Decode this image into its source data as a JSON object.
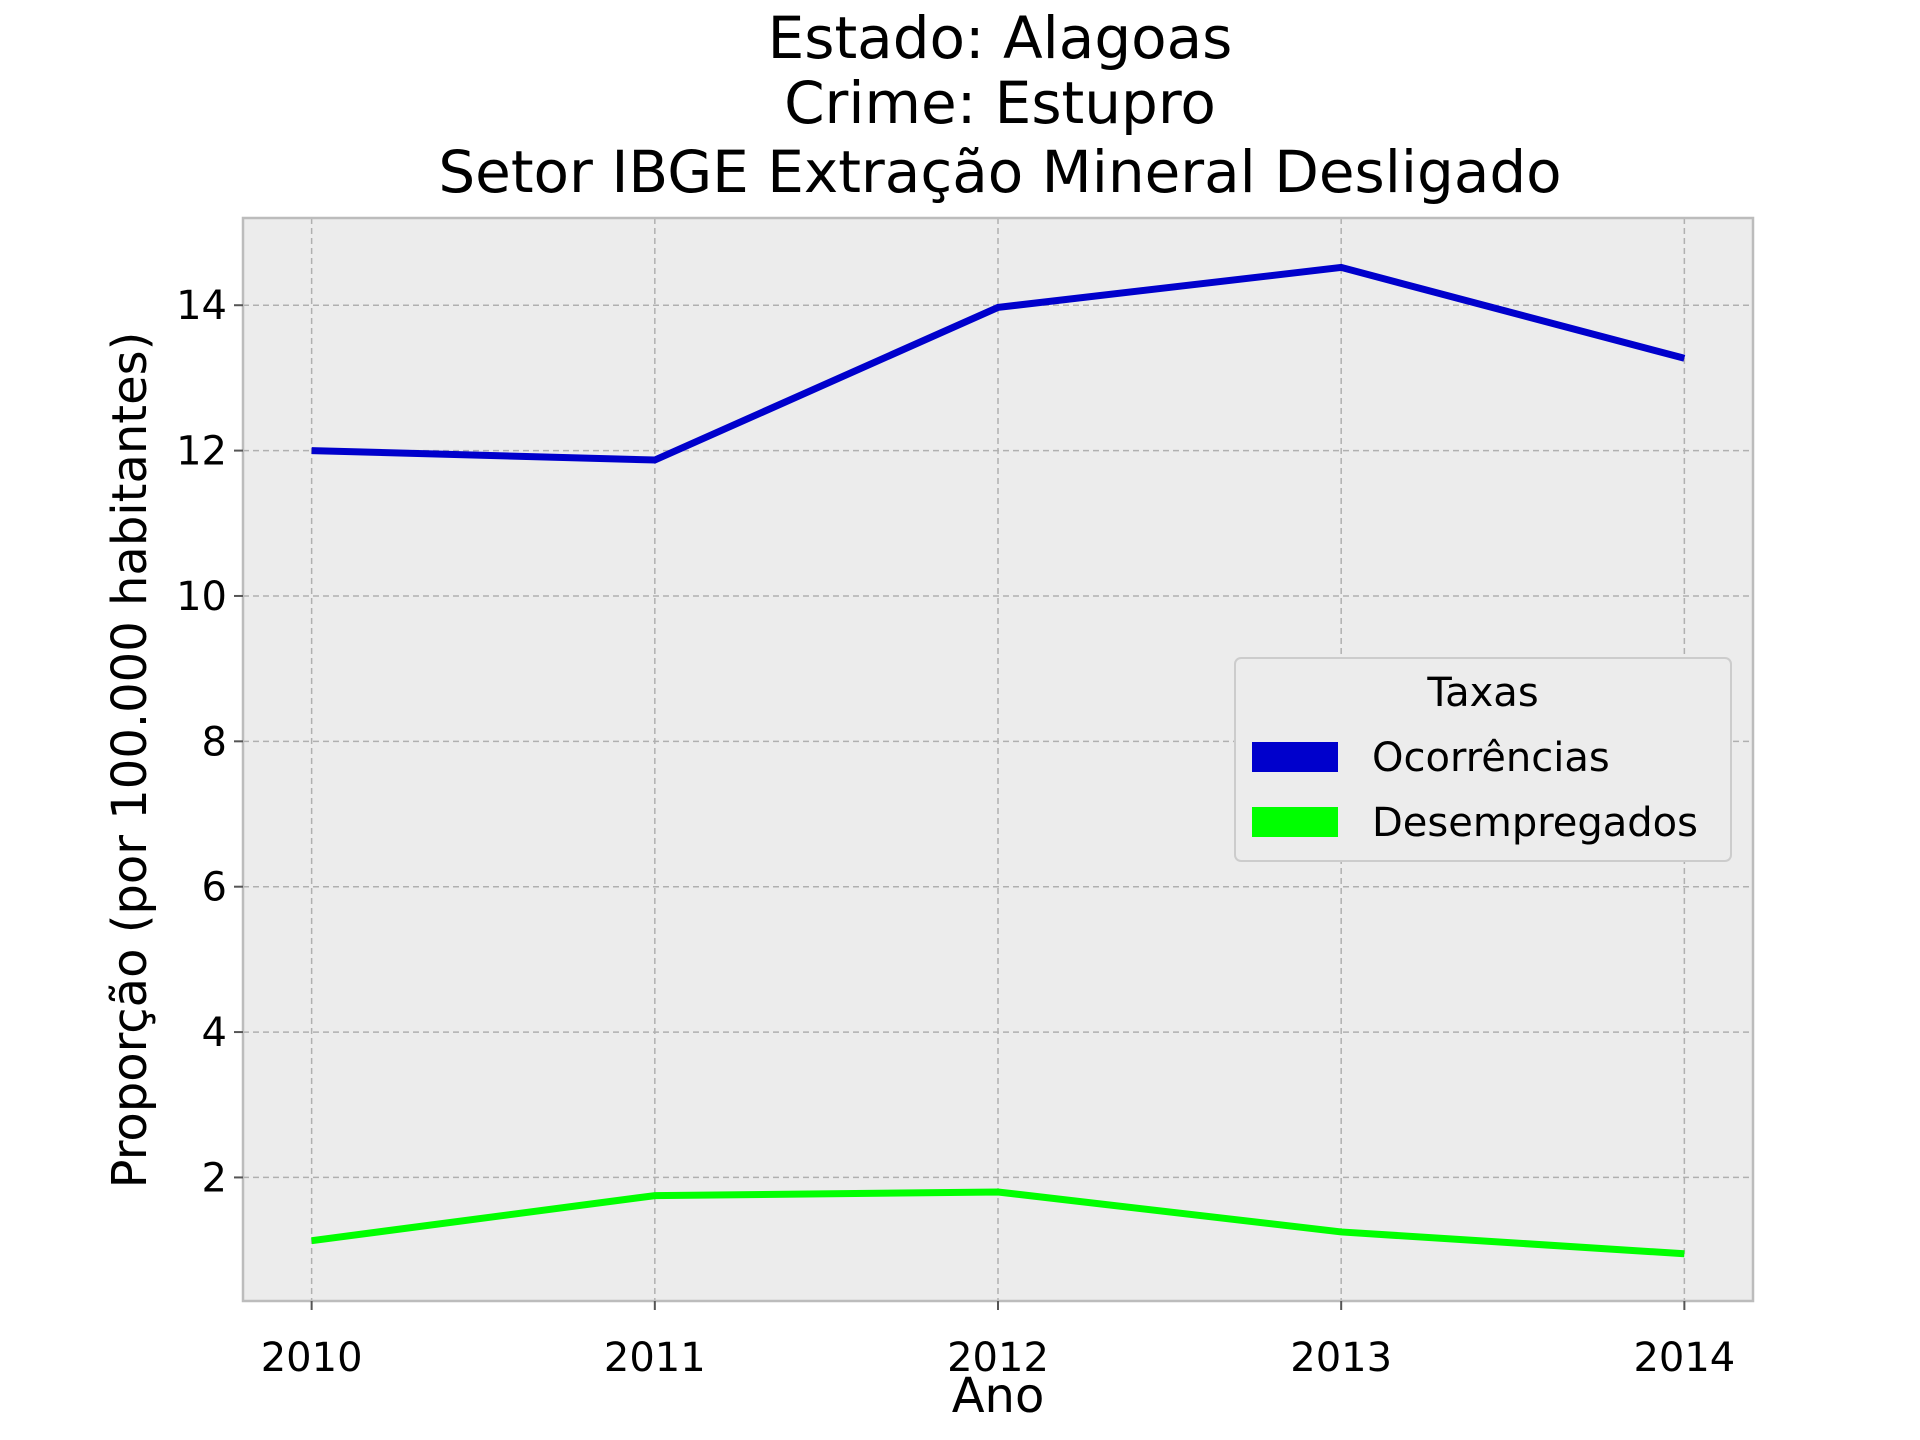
{
  "chart_data": {
    "type": "line",
    "title_lines": [
      "Estado: Alagoas",
      "Crime: Estupro",
      "Setor IBGE  Extração Mineral   Desligado"
    ],
    "xlabel": "Ano",
    "ylabel": "Proporção (por 100.000 habitantes)",
    "x": [
      2010,
      2011,
      2012,
      2013,
      2014
    ],
    "x_tick_labels": [
      "2010",
      "2011",
      "2012",
      "2013",
      "2014"
    ],
    "y_ticks": [
      2,
      4,
      6,
      8,
      10,
      12,
      14
    ],
    "y_tick_labels": [
      "2",
      "4",
      "6",
      "8",
      "10",
      "12",
      "14"
    ],
    "xlim": [
      2009.8,
      2014.2
    ],
    "ylim": [
      0.3,
      15.2
    ],
    "grid": true,
    "background": "#ececec",
    "series": [
      {
        "name": "Ocorrências",
        "color": "#0000cc",
        "values": [
          12.0,
          11.87,
          13.97,
          14.52,
          13.27
        ]
      },
      {
        "name": "Desempregados",
        "color": "#00ff00",
        "values": [
          1.13,
          1.75,
          1.8,
          1.25,
          0.95
        ]
      }
    ],
    "legend": {
      "title": "Taxas",
      "placement": "center-right"
    }
  }
}
